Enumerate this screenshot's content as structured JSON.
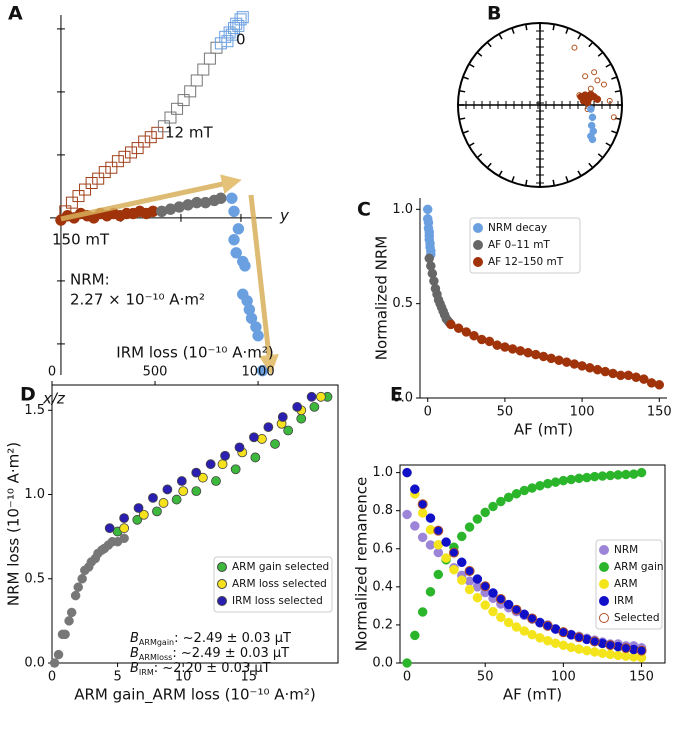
{
  "chart_data": [
    {
      "type": "zijderveld",
      "panel": "A",
      "xlabel": "y",
      "ylabel": "x/z",
      "annotations": [
        "0",
        "12 mT",
        "150 mT",
        "NRM:",
        "2.27 × 10⁻¹⁰ A·m²"
      ],
      "xlim": [
        -0.5,
        10
      ],
      "ylim": [
        -7.2,
        9.3
      ],
      "series": [
        {
          "marker": "square",
          "filled": false,
          "color": "#a0401a",
          "x": [
            0.2,
            0.5,
            0.8,
            1.1,
            1.4,
            1.7,
            2.0,
            2.3,
            2.6,
            2.9,
            3.2,
            3.5,
            3.8,
            4.1,
            4.4
          ],
          "values": [
            0.3,
            0.7,
            1.0,
            1.3,
            1.6,
            1.8,
            2.1,
            2.3,
            2.6,
            2.8,
            3.0,
            3.2,
            3.5,
            3.7,
            3.9
          ]
        },
        {
          "marker": "square",
          "filled": false,
          "color": "#777777",
          "x": [
            4.7,
            5.0,
            5.3,
            5.6,
            5.9,
            6.2,
            6.5,
            6.8,
            7.1
          ],
          "values": [
            4.2,
            4.6,
            5.0,
            5.4,
            5.8,
            6.3,
            6.8,
            7.3,
            7.8
          ]
        },
        {
          "marker": "square",
          "filled": false,
          "color": "#6a9fe0",
          "x": [
            7.3,
            7.5,
            7.7,
            7.9,
            8.0,
            8.2,
            7.6,
            7.8,
            8.1,
            8.3
          ],
          "values": [
            8.0,
            8.3,
            8.5,
            8.7,
            8.9,
            9.1,
            8.1,
            8.4,
            8.8,
            9.2
          ]
        },
        {
          "marker": "circle",
          "filled": true,
          "color": "#a0330a",
          "x": [
            0,
            0.3,
            0.6,
            0.9,
            1.2,
            1.5,
            1.8,
            2.1,
            2.4,
            2.7,
            3.0,
            3.3,
            3.6,
            3.9,
            4.2
          ],
          "values": [
            -0.1,
            0.1,
            0,
            0.2,
            0.1,
            0,
            0.2,
            0.1,
            0.2,
            0.1,
            0.2,
            0.2,
            0.3,
            0.2,
            0.3
          ]
        },
        {
          "marker": "circle",
          "filled": true,
          "color": "#6f6f6f",
          "x": [
            4.6,
            5.0,
            5.4,
            5.8,
            6.2,
            6.6,
            7.0,
            7.3
          ],
          "values": [
            0.3,
            0.4,
            0.5,
            0.6,
            0.7,
            0.7,
            0.8,
            0.9
          ]
        },
        {
          "marker": "circle",
          "filled": true,
          "color": "#6a9fe0",
          "x": [
            7.8,
            7.9,
            8.1,
            7.9,
            8.0,
            8.3,
            8.4,
            8.3,
            8.5,
            8.6,
            8.7,
            8.9,
            9.0,
            9.2
          ],
          "values": [
            0.9,
            0.3,
            -0.5,
            -1.0,
            -1.6,
            -2.0,
            -2.2,
            -3.5,
            -3.8,
            -4.2,
            -4.6,
            -5.0,
            -5.4,
            -7.0
          ]
        }
      ]
    },
    {
      "type": "stereonet",
      "panel": "B",
      "series": [
        {
          "filled": false,
          "color": "#b0501a",
          "x": [
            0.42,
            0.55,
            0.62,
            0.7,
            0.78,
            0.48,
            0.85,
            0.58,
            0.66,
            0.9
          ],
          "values": [
            0.7,
            0.35,
            0.2,
            0.3,
            0.25,
            0.12,
            0.05,
            -0.05,
            0.4,
            -0.15
          ]
        },
        {
          "filled": true,
          "color": "#a0330a",
          "x": [
            0.5,
            0.55,
            0.6,
            0.62,
            0.66,
            0.7,
            0.58,
            0.53
          ],
          "values": [
            0.1,
            0.12,
            0.08,
            0.13,
            0.1,
            0.07,
            0.03,
            0.05
          ]
        },
        {
          "filled": true,
          "color": "#6a9fe0",
          "x": [
            0.62,
            0.64,
            0.63,
            0.65,
            0.62,
            0.64
          ],
          "values": [
            -0.05,
            -0.15,
            -0.25,
            -0.32,
            -0.38,
            -0.42
          ]
        }
      ]
    },
    {
      "type": "scatter",
      "panel": "C",
      "xlabel": "AF (mT)",
      "ylabel": "Normalized NRM",
      "xlim": [
        -5,
        155
      ],
      "ylim": [
        0,
        1.06
      ],
      "xticks": [
        0,
        50,
        100,
        150
      ],
      "yticks": [
        {
          "value": 0,
          "label": "0.0"
        },
        {
          "value": 0.5,
          "label": "0.5"
        },
        {
          "value": 1,
          "label": "1.0"
        }
      ],
      "series": [
        {
          "name": "NRM decay",
          "color": "#6a9fe0",
          "filled": true,
          "x": [
            0,
            0,
            0.5,
            0.5,
            1,
            1,
            1,
            1.5,
            1.5,
            2,
            2
          ],
          "values": [
            1.0,
            0.95,
            0.93,
            0.9,
            0.88,
            0.86,
            0.84,
            0.82,
            0.8,
            0.78,
            0.76
          ]
        },
        {
          "name": "AF 0–11 mT",
          "color": "#666666",
          "filled": true,
          "x": [
            1,
            2,
            3,
            4,
            5,
            6,
            7,
            8,
            9,
            10,
            11,
            12,
            13,
            14
          ],
          "values": [
            0.74,
            0.7,
            0.66,
            0.62,
            0.58,
            0.55,
            0.52,
            0.5,
            0.48,
            0.46,
            0.44,
            0.42,
            0.41,
            0.4
          ]
        },
        {
          "name": "AF 12–150 mT",
          "color": "#a0330a",
          "filled": true,
          "x": [
            15,
            20,
            25,
            30,
            35,
            40,
            45,
            50,
            55,
            60,
            65,
            70,
            75,
            80,
            85,
            90,
            95,
            100,
            105,
            110,
            115,
            120,
            125,
            130,
            135,
            140,
            145,
            150
          ],
          "values": [
            0.39,
            0.37,
            0.35,
            0.33,
            0.31,
            0.3,
            0.28,
            0.27,
            0.26,
            0.25,
            0.24,
            0.23,
            0.22,
            0.21,
            0.2,
            0.19,
            0.18,
            0.17,
            0.16,
            0.15,
            0.14,
            0.13,
            0.12,
            0.12,
            0.11,
            0.1,
            0.08,
            0.07
          ]
        }
      ]
    },
    {
      "type": "scatter",
      "panel": "D",
      "xlabel": "ARM gain_ARM loss (10⁻¹⁰ A·m²)",
      "x2label": "IRM loss (10⁻¹⁰ A·m²)",
      "ylabel": "NRM loss (10⁻¹⁰ A·m²)",
      "xlim": [
        0,
        21.8
      ],
      "x2lim": [
        0,
        1388
      ],
      "ylim": [
        0,
        1.65
      ],
      "xticks": [
        0,
        5,
        10,
        15
      ],
      "x2ticks": [
        0,
        500,
        1000
      ],
      "yticks": [
        {
          "value": 0,
          "label": "0.0"
        },
        {
          "value": 0.5,
          "label": "0.5"
        },
        {
          "value": 1,
          "label": "1.0"
        },
        {
          "value": 1.5,
          "label": "1.5"
        }
      ],
      "annotations": [
        {
          "symbol": "B",
          "subscript": "ARMgain",
          "text": ": ~2.49 ± 0.03 μT"
        },
        {
          "symbol": "B",
          "subscript": "ARMloss",
          "text": ": ~2.49 ± 0.03 μT"
        },
        {
          "symbol": "B",
          "subscript": "IRM",
          "text": ": ~2.20 ± 0.03 μT"
        }
      ],
      "series": [
        {
          "color": "#777777",
          "filled": true,
          "x": [
            0.2,
            0.5,
            0.8,
            1.0,
            1.3,
            1.5,
            1.8,
            2.0,
            2.3,
            2.5,
            2.8,
            3.0,
            3.3,
            3.5,
            3.8,
            4.0,
            4.3,
            4.6,
            5.0,
            5.5
          ],
          "values": [
            0,
            0.05,
            0.17,
            0.17,
            0.25,
            0.3,
            0.4,
            0.45,
            0.5,
            0.55,
            0.57,
            0.6,
            0.62,
            0.65,
            0.67,
            0.68,
            0.7,
            0.72,
            0.72,
            0.74
          ]
        },
        {
          "name": "ARM gain selected",
          "color": "#3cb83c",
          "edgecolor": "#444444",
          "filled": true,
          "x": [
            5,
            6.5,
            8,
            9.5,
            11,
            12.5,
            14,
            15.5,
            17,
            18,
            19,
            20,
            21
          ],
          "values": [
            0.78,
            0.85,
            0.9,
            0.97,
            1.02,
            1.08,
            1.15,
            1.22,
            1.3,
            1.38,
            1.45,
            1.52,
            1.58
          ]
        },
        {
          "name": "ARM loss selected",
          "color": "#f5e21c",
          "edgecolor": "#444444",
          "filled": true,
          "x": [
            5.5,
            7,
            8.5,
            10,
            11.5,
            13,
            14.5,
            16,
            17.5,
            19,
            20.5
          ],
          "values": [
            0.8,
            0.88,
            0.95,
            1.02,
            1.1,
            1.18,
            1.25,
            1.33,
            1.42,
            1.5,
            1.58
          ]
        },
        {
          "name": "IRM loss selected",
          "color": "#2a1fb0",
          "edgecolor": "#444444",
          "filled": true,
          "axis": "x2",
          "x": [
            280,
            350,
            420,
            490,
            560,
            630,
            700,
            770,
            840,
            910,
            980,
            1050,
            1120,
            1190,
            1260
          ],
          "values": [
            0.8,
            0.86,
            0.92,
            0.98,
            1.03,
            1.08,
            1.13,
            1.18,
            1.23,
            1.28,
            1.34,
            1.4,
            1.46,
            1.52,
            1.58
          ]
        }
      ]
    },
    {
      "type": "scatter",
      "panel": "E",
      "xlabel": "AF (mT)",
      "ylabel": "Normalized remanence",
      "xlim": [
        -4.5,
        165
      ],
      "ylim": [
        0,
        1.04
      ],
      "xticks": [
        0,
        50,
        100,
        150
      ],
      "yticks": [
        {
          "value": 0,
          "label": "0.0"
        },
        {
          "value": 0.2,
          "label": "0.2"
        },
        {
          "value": 0.4,
          "label": "0.4"
        },
        {
          "value": 0.6,
          "label": "0.6"
        },
        {
          "value": 0.8,
          "label": "0.8"
        },
        {
          "value": 1,
          "label": "1.0"
        }
      ],
      "series": [
        {
          "name": "NRM",
          "color": "#9c84d9",
          "filled": true,
          "x": [
            0,
            5,
            10,
            15,
            20,
            25,
            30,
            35,
            40,
            45,
            50,
            55,
            60,
            65,
            70,
            75,
            80,
            85,
            90,
            95,
            100,
            105,
            110,
            115,
            120,
            125,
            130,
            135,
            140,
            145,
            150
          ],
          "values": [
            0.78,
            0.72,
            0.66,
            0.62,
            0.58,
            0.55,
            0.5,
            0.46,
            0.43,
            0.4,
            0.37,
            0.34,
            0.31,
            0.29,
            0.27,
            0.25,
            0.23,
            0.21,
            0.2,
            0.18,
            0.16,
            0.15,
            0.14,
            0.13,
            0.12,
            0.11,
            0.1,
            0.1,
            0.09,
            0.09,
            0.08
          ]
        },
        {
          "name": "ARM gain",
          "color": "#2bb52b",
          "filled": true,
          "x": [
            0,
            5,
            10,
            15,
            20,
            25,
            30,
            35,
            40,
            45,
            50,
            55,
            60,
            65,
            70,
            75,
            80,
            85,
            90,
            95,
            100,
            105,
            110,
            115,
            120,
            125,
            130,
            135,
            140,
            145,
            150
          ],
          "values": [
            0,
            0.145,
            0.268,
            0.374,
            0.465,
            0.542,
            0.608,
            0.665,
            0.714,
            0.756,
            0.791,
            0.822,
            0.848,
            0.87,
            0.889,
            0.906,
            0.919,
            0.931,
            0.942,
            0.95,
            0.958,
            0.964,
            0.97,
            0.974,
            0.979,
            0.982,
            0.985,
            0.988,
            0.99,
            0.992,
            1.0
          ]
        },
        {
          "name": "ARM",
          "color": "#f4e41c",
          "filled": true,
          "x": [
            0,
            5,
            10,
            15,
            20,
            25,
            30,
            35,
            40,
            45,
            50,
            55,
            60,
            65,
            70,
            75,
            80,
            85,
            90,
            95,
            100,
            105,
            110,
            115,
            120,
            125,
            130,
            135,
            140,
            145,
            150
          ],
          "values": [
            1,
            0.888,
            0.788,
            0.7,
            0.621,
            0.551,
            0.49,
            0.435,
            0.386,
            0.343,
            0.304,
            0.27,
            0.24,
            0.213,
            0.189,
            0.168,
            0.149,
            0.132,
            0.117,
            0.104,
            0.093,
            0.082,
            0.073,
            0.065,
            0.058,
            0.051,
            0.045,
            0.04,
            0.036,
            0.032,
            0.028
          ]
        },
        {
          "name": "IRM",
          "color": "#1010c8",
          "filled": true,
          "x": [
            0,
            5,
            10,
            15,
            20,
            25,
            30,
            35,
            40,
            45,
            50,
            55,
            60,
            65,
            70,
            75,
            80,
            85,
            90,
            95,
            100,
            105,
            110,
            115,
            120,
            125,
            130,
            135,
            140,
            145,
            150
          ],
          "values": [
            1,
            0.913,
            0.834,
            0.761,
            0.695,
            0.635,
            0.58,
            0.529,
            0.483,
            0.441,
            0.403,
            0.368,
            0.336,
            0.307,
            0.28,
            0.256,
            0.234,
            0.213,
            0.195,
            0.178,
            0.162,
            0.148,
            0.135,
            0.124,
            0.113,
            0.103,
            0.094,
            0.086,
            0.078,
            0.071,
            0.065
          ]
        },
        {
          "name": "Selected",
          "color": "#b0502a",
          "filled": false,
          "x": [
            10,
            20,
            30,
            40,
            50,
            60,
            70,
            80,
            90,
            100,
            110,
            120,
            130,
            140,
            150
          ],
          "values": [
            0.834,
            0.695,
            0.58,
            0.483,
            0.403,
            0.336,
            0.28,
            0.234,
            0.195,
            0.162,
            0.135,
            0.113,
            0.094,
            0.078,
            0.065
          ]
        }
      ]
    }
  ]
}
